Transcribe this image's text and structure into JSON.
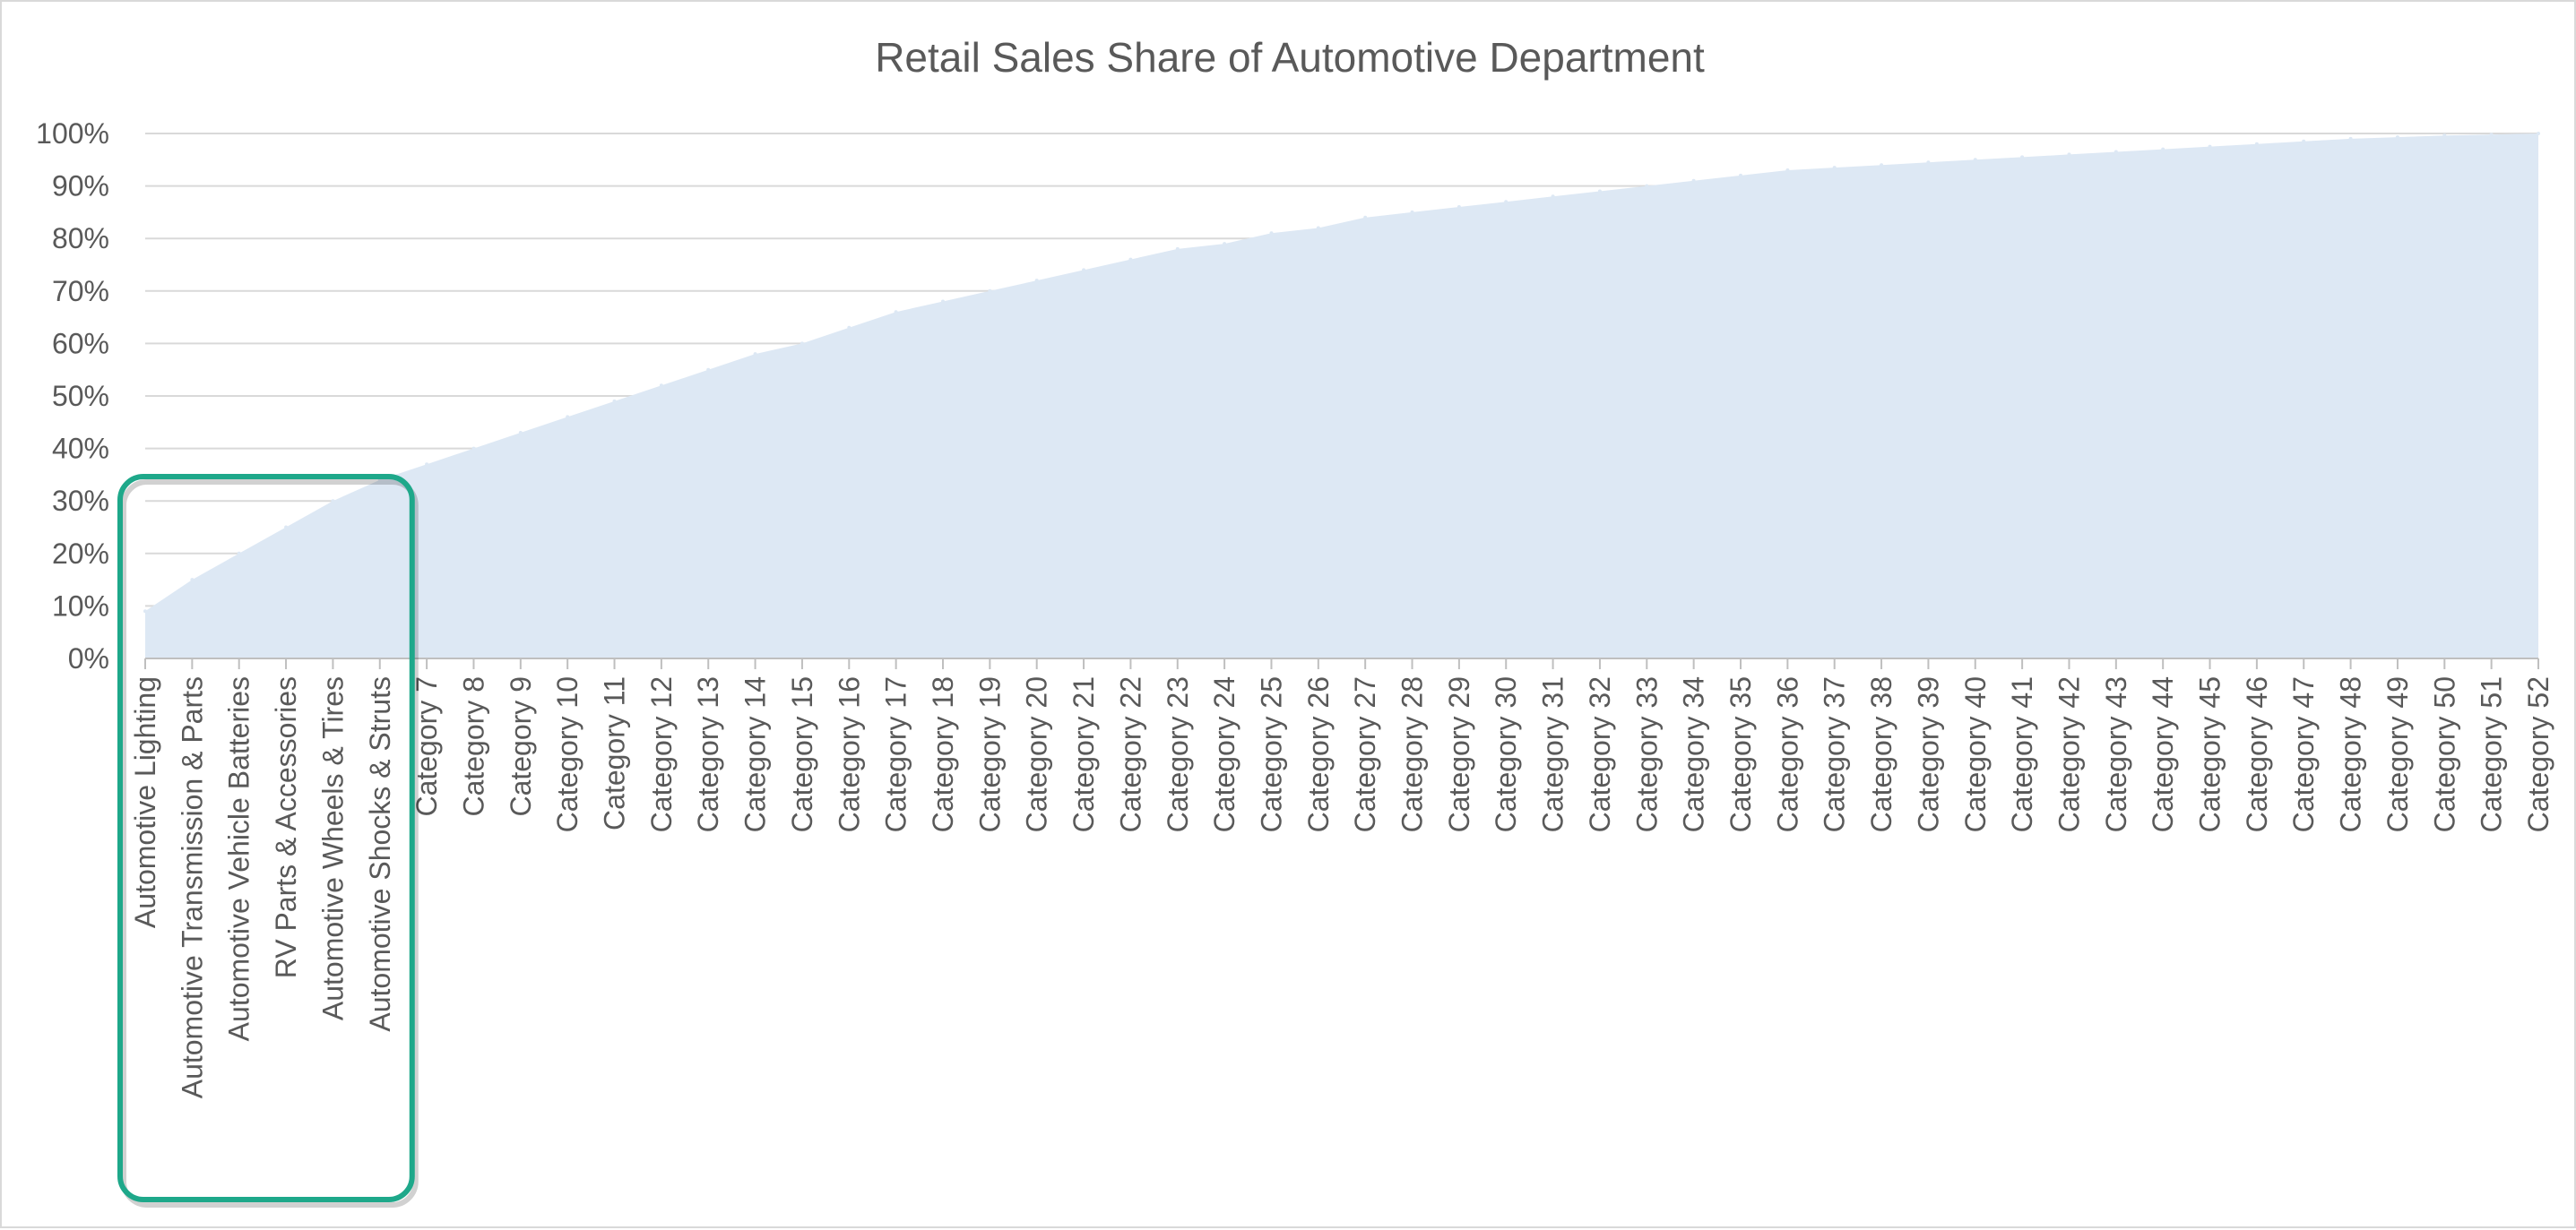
{
  "chart_data": {
    "type": "area",
    "title": "Retail Sales Share of Automotive Department",
    "xlabel": "",
    "ylabel": "",
    "ylim": [
      0,
      100
    ],
    "y_ticks": [
      "0%",
      "10%",
      "20%",
      "30%",
      "40%",
      "50%",
      "60%",
      "70%",
      "80%",
      "90%",
      "100%"
    ],
    "grid": "horizontal",
    "legend": "none",
    "categories": [
      "Automotive Lighting",
      "Automotive Transmission & Parts",
      "Automotive Vehicle Batteries",
      "RV Parts & Accessories",
      "Automotive Wheels & Tires",
      "Automotive Shocks & Struts",
      "Category 7",
      "Category 8",
      "Category 9",
      "Category 10",
      "Category 11",
      "Category 12",
      "Category 13",
      "Category 14",
      "Category 15",
      "Category 16",
      "Category 17",
      "Category 18",
      "Category 19",
      "Category 20",
      "Category 21",
      "Category 22",
      "Category 23",
      "Category 24",
      "Category 25",
      "Category 26",
      "Category 27",
      "Category 28",
      "Category 29",
      "Category 30",
      "Category 31",
      "Category 32",
      "Category 33",
      "Category 34",
      "Category 35",
      "Category 36",
      "Category 37",
      "Category 38",
      "Category 39",
      "Category 40",
      "Category 41",
      "Category 42",
      "Category 43",
      "Category 44",
      "Category 45",
      "Category 46",
      "Category 47",
      "Category 48",
      "Category 49",
      "Category 50",
      "Category 51",
      "Category 52"
    ],
    "values": [
      9,
      15,
      20,
      25,
      30,
      34,
      37,
      40,
      43,
      46,
      49,
      52,
      55,
      58,
      60,
      63,
      66,
      68,
      70,
      72,
      74,
      76,
      78,
      79,
      81,
      82,
      84,
      85,
      86,
      87,
      88,
      89,
      90,
      91,
      92,
      93,
      93.5,
      94,
      94.5,
      95,
      95.5,
      96,
      96.5,
      97,
      97.5,
      98,
      98.5,
      99,
      99.3,
      99.6,
      99.8,
      100
    ],
    "colors": {
      "area_fill": "#dde8f4",
      "grid": "#d9d9d9",
      "axis": "#bfbfbf",
      "text": "#595959",
      "highlight": "#1ea88a"
    },
    "annotation": {
      "type": "highlight-box",
      "covers_categories": [
        "Automotive Lighting",
        "Automotive Transmission & Parts",
        "Automotive Vehicle Batteries",
        "RV Parts & Accessories",
        "Automotive Wheels & Tires",
        "Automotive Shocks & Struts"
      ]
    }
  }
}
